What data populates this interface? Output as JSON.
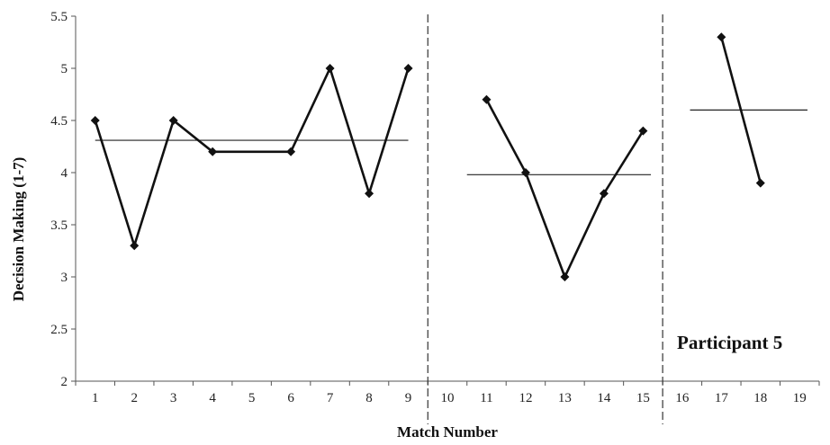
{
  "chart_data": {
    "type": "line",
    "xlabel": "Match Number",
    "ylabel": "Decision Making (1-7)",
    "ylim": [
      2,
      5.5
    ],
    "xlim": [
      0.5,
      19.5
    ],
    "yticks": [
      "2",
      "2.5",
      "3",
      "3.5",
      "4",
      "4.5",
      "5",
      "5.5"
    ],
    "xticks": [
      "1",
      "2",
      "3",
      "4",
      "5",
      "6",
      "7",
      "8",
      "9",
      "10",
      "11",
      "12",
      "13",
      "14",
      "15",
      "16",
      "17",
      "18",
      "19"
    ],
    "annotation": "Participant 5",
    "grid": false,
    "phase_separators": [
      9.5,
      15.5
    ],
    "series": [
      {
        "points": [
          [
            1,
            4.5
          ],
          [
            2,
            3.3
          ],
          [
            3,
            4.5
          ],
          [
            4,
            4.2
          ],
          [
            6,
            4.2
          ],
          [
            7,
            5.0
          ],
          [
            8,
            3.8
          ],
          [
            9,
            5.0
          ]
        ]
      },
      {
        "points": [
          [
            11,
            4.7
          ],
          [
            12,
            4.0
          ],
          [
            13,
            3.0
          ],
          [
            14,
            3.8
          ],
          [
            15,
            4.4
          ]
        ]
      },
      {
        "points": [
          [
            17,
            5.3
          ],
          [
            18,
            3.9
          ]
        ]
      }
    ],
    "phase_means": [
      {
        "x_start": 1,
        "x_end": 9,
        "value": 4.31
      },
      {
        "x_start": 10.5,
        "x_end": 15.2,
        "value": 3.98
      },
      {
        "x_start": 16.2,
        "x_end": 19.2,
        "value": 4.6
      }
    ]
  }
}
